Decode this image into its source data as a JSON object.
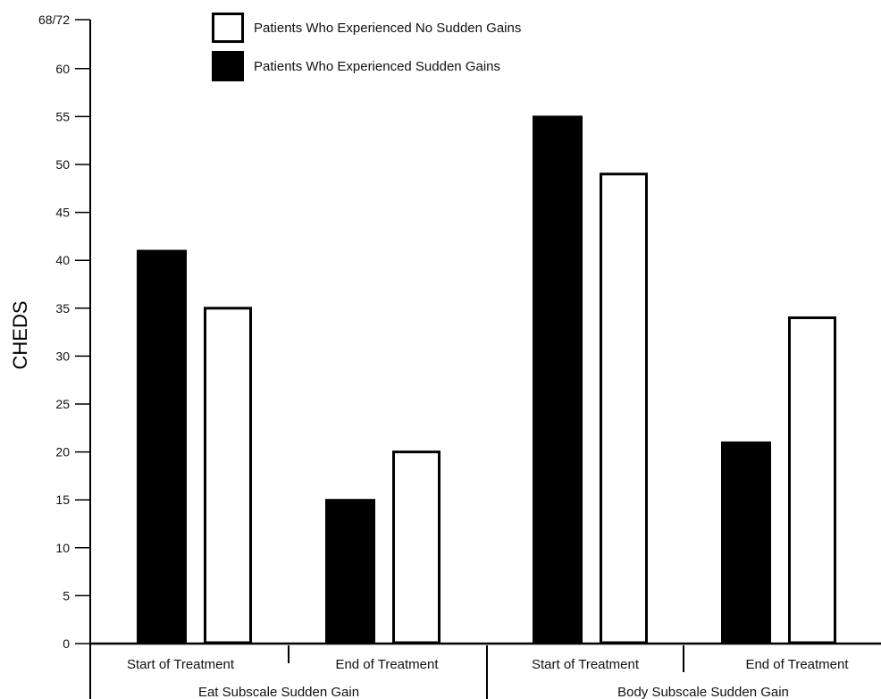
{
  "chart_data": {
    "type": "bar",
    "ylabel": "CHEDS",
    "xlabel": "",
    "ylim": [
      0,
      65
    ],
    "top_tick_label": "68/72",
    "yticks": [
      0,
      5,
      10,
      15,
      20,
      25,
      30,
      35,
      40,
      45,
      50,
      55,
      60
    ],
    "groups": [
      {
        "label": "Eat Subscale Sudden Gain",
        "subgroups": [
          {
            "label": "Start of Treatment",
            "values": {
              "sudden": 41,
              "no_sudden": 35
            }
          },
          {
            "label": "End of Treatment",
            "values": {
              "sudden": 15,
              "no_sudden": 20
            }
          }
        ]
      },
      {
        "label": "Body Subscale Sudden Gain",
        "subgroups": [
          {
            "label": "Start of Treatment",
            "values": {
              "sudden": 55,
              "no_sudden": 49
            }
          },
          {
            "label": "End of Treatment",
            "values": {
              "sudden": 21,
              "no_sudden": 34
            }
          }
        ]
      }
    ],
    "series": [
      {
        "key": "no_sudden",
        "name": "Patients Who Experienced No Sudden Gains",
        "fill": "#ffffff",
        "stroke": "#000000"
      },
      {
        "key": "sudden",
        "name": "Patients Who Experienced Sudden Gains",
        "fill": "#000000",
        "stroke": "#000000"
      }
    ],
    "legend_position": "top-center",
    "grid": false
  }
}
